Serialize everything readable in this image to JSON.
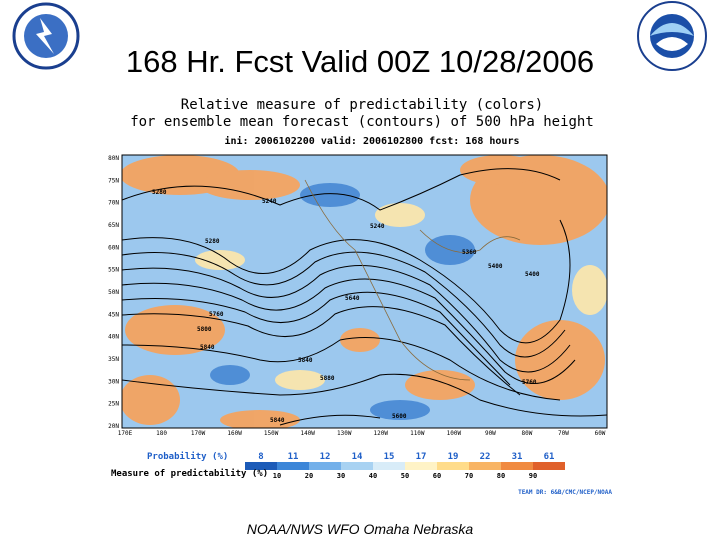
{
  "header": {
    "title": "168 Hr. Fcst Valid 00Z 10/28/2006"
  },
  "map": {
    "title_lines": [
      "Relative measure of predictability (colors)",
      "for ensemble mean forecast (contours) of 500 hPa height",
      "ini: 2006102200  valid: 2006102800  fcst: 168 hours"
    ],
    "y_axis_labels": [
      "80N",
      "75N",
      "70N",
      "65N",
      "60N",
      "55N",
      "50N",
      "45N",
      "40N",
      "35N",
      "30N",
      "25N",
      "20N"
    ],
    "x_axis_labels": [
      "170E",
      "180",
      "170W",
      "160W",
      "150W",
      "140W",
      "130W",
      "120W",
      "110W",
      "100W",
      "90W",
      "80W",
      "70W",
      "60W"
    ],
    "contour_labels": [
      "5280",
      "5240",
      "5240",
      "5280",
      "5360",
      "5400",
      "5400",
      "5760",
      "5800",
      "5840",
      "5840",
      "5760",
      "5880",
      "5840",
      "5600",
      "5640"
    ]
  },
  "legend": {
    "probability_label": "Probability (%)",
    "probability_values": [
      "8",
      "11",
      "12",
      "14",
      "15",
      "17",
      "19",
      "22",
      "31",
      "61"
    ],
    "measure_label": "Measure of predictability (%)",
    "measure_values": [
      "10",
      "20",
      "30",
      "40",
      "50",
      "60",
      "70",
      "80",
      "90"
    ],
    "credit": "TEAM DR: 6&B/CMC/NCEP/NOAA"
  },
  "footer": "NOAA/NWS WFO Omaha Nebraska"
}
